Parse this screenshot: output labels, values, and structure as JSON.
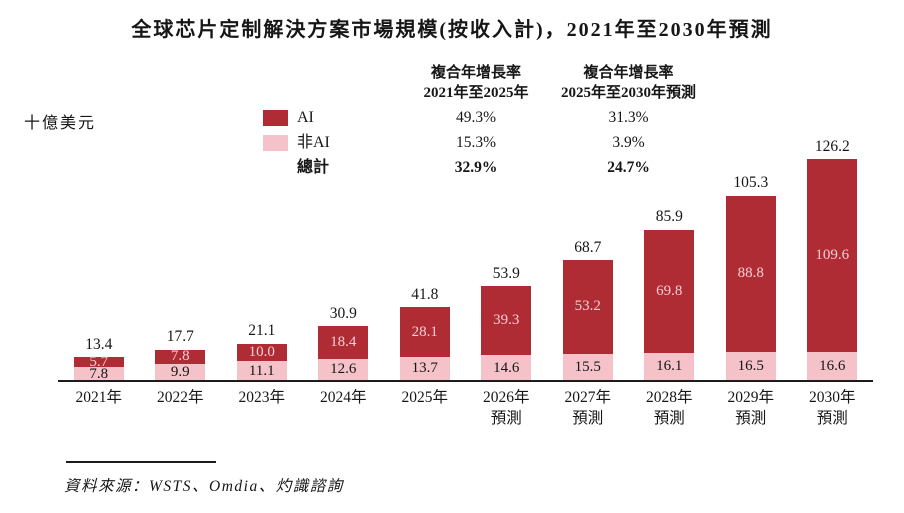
{
  "title": "全球芯片定制解決方案市場規模(按收入計)，2021年至2030年預測",
  "source": "資料來源：WSTS、Omdia、灼識諮詢",
  "chart_data": {
    "type": "bar",
    "stacked": true,
    "title": "全球芯片定制解決方案市場規模(按收入計)，2021年至2030年預測",
    "unit": "十億美元",
    "grid": false,
    "legend_position": "top-left",
    "ylim": [
      0,
      130
    ],
    "categories": [
      "2021年",
      "2022年",
      "2023年",
      "2024年",
      "2025年",
      "2026年",
      "2027年",
      "2028年",
      "2029年",
      "2030年"
    ],
    "category_sublabels": [
      "",
      "",
      "",
      "",
      "",
      "預測",
      "預測",
      "預測",
      "預測",
      "預測"
    ],
    "series": [
      {
        "name": "AI",
        "color": "#B02C34",
        "label_color": "#F4CFD3",
        "values": [
          5.7,
          7.8,
          10.0,
          18.4,
          28.1,
          39.3,
          53.2,
          69.8,
          88.8,
          109.6
        ]
      },
      {
        "name": "非AI",
        "color": "#F4C2C8",
        "label_color": "#161616",
        "values": [
          7.8,
          9.9,
          11.1,
          12.6,
          13.7,
          14.6,
          15.5,
          16.1,
          16.5,
          16.6
        ]
      }
    ],
    "totals": [
      13.4,
      17.7,
      21.1,
      30.9,
      41.8,
      53.9,
      68.7,
      85.9,
      105.3,
      126.2
    ],
    "total_label": "總計",
    "cagr": {
      "columns": [
        {
          "header_line1": "複合年增長率",
          "header_line2": "2021年至2025年",
          "ai": "49.3%",
          "non_ai": "15.3%",
          "total": "32.9%"
        },
        {
          "header_line1": "複合年增長率",
          "header_line2": "2025年至2030年預測",
          "ai": "31.3%",
          "non_ai": "3.9%",
          "total": "24.7%"
        }
      ]
    }
  }
}
